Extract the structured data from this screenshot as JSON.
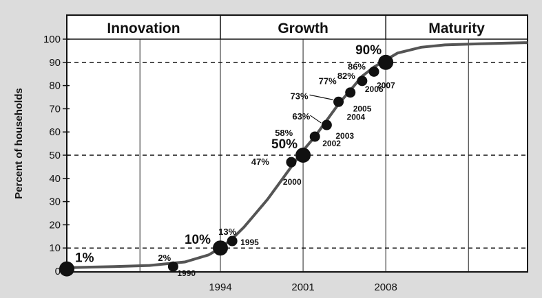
{
  "chart_data": {
    "type": "line",
    "title": "",
    "xlabel": "",
    "ylabel": "Percent of households",
    "ylim": [
      0,
      100
    ],
    "xlim": [
      1981,
      2020
    ],
    "yticks": [
      0,
      10,
      20,
      30,
      40,
      50,
      60,
      70,
      80,
      90,
      100
    ],
    "xticks": [
      "1994",
      "2001",
      "2008"
    ],
    "xtick_values": [
      1994,
      2001,
      2008
    ],
    "dashed_lines_y": [
      10,
      50,
      90
    ],
    "grid": true,
    "phases": [
      {
        "label": "Innovation",
        "from": 1981,
        "to": 1994
      },
      {
        "label": "Growth",
        "from": 1994,
        "to": 2008
      },
      {
        "label": "Maturity",
        "from": 2008,
        "to": 2020
      }
    ],
    "series": [
      {
        "curve": [
          [
            1981,
            1.5
          ],
          [
            1985,
            2
          ],
          [
            1988,
            2.5
          ],
          [
            1991,
            4
          ],
          [
            1993,
            7
          ],
          [
            1994,
            10
          ],
          [
            1995,
            14
          ],
          [
            1996,
            19
          ],
          [
            1997,
            25
          ],
          [
            1998,
            31
          ],
          [
            1999,
            38
          ],
          [
            2000,
            45
          ],
          [
            2001,
            52
          ],
          [
            2002,
            58
          ],
          [
            2003,
            65
          ],
          [
            2004,
            72
          ],
          [
            2005,
            78
          ],
          [
            2006,
            84
          ],
          [
            2007,
            88
          ],
          [
            2008,
            91
          ],
          [
            2009,
            94
          ],
          [
            2011,
            96.5
          ],
          [
            2013,
            97.5
          ],
          [
            2016,
            98
          ],
          [
            2020,
            98.5
          ]
        ],
        "points": [
          {
            "x": 1981,
            "y": 1,
            "pct": "1%",
            "year": "",
            "big": true
          },
          {
            "x": 1990,
            "y": 2,
            "pct": "2%",
            "year": "1990",
            "big": false
          },
          {
            "x": 1994,
            "y": 10,
            "pct": "10%",
            "year": "",
            "big": true
          },
          {
            "x": 1995,
            "y": 13,
            "pct": "13%",
            "year": "1995",
            "big": false
          },
          {
            "x": 2000,
            "y": 47,
            "pct": "47%",
            "year": "2000",
            "big": false
          },
          {
            "x": 2001,
            "y": 50,
            "pct": "50%",
            "year": "",
            "big": true
          },
          {
            "x": 2002,
            "y": 58,
            "pct": "58%",
            "year": "2002",
            "big": false
          },
          {
            "x": 2003,
            "y": 63,
            "pct": "63%",
            "year": "2003",
            "big": false
          },
          {
            "x": 2004,
            "y": 73,
            "pct": "73%",
            "year": "2004",
            "big": false
          },
          {
            "x": 2005,
            "y": 77,
            "pct": "77%",
            "year": "2005",
            "big": false
          },
          {
            "x": 2006,
            "y": 82,
            "pct": "82%",
            "year": "2006",
            "big": false
          },
          {
            "x": 2007,
            "y": 86,
            "pct": "86%",
            "year": "2007",
            "big": false
          },
          {
            "x": 2008,
            "y": 90,
            "pct": "90%",
            "year": "",
            "big": true
          }
        ]
      }
    ]
  }
}
